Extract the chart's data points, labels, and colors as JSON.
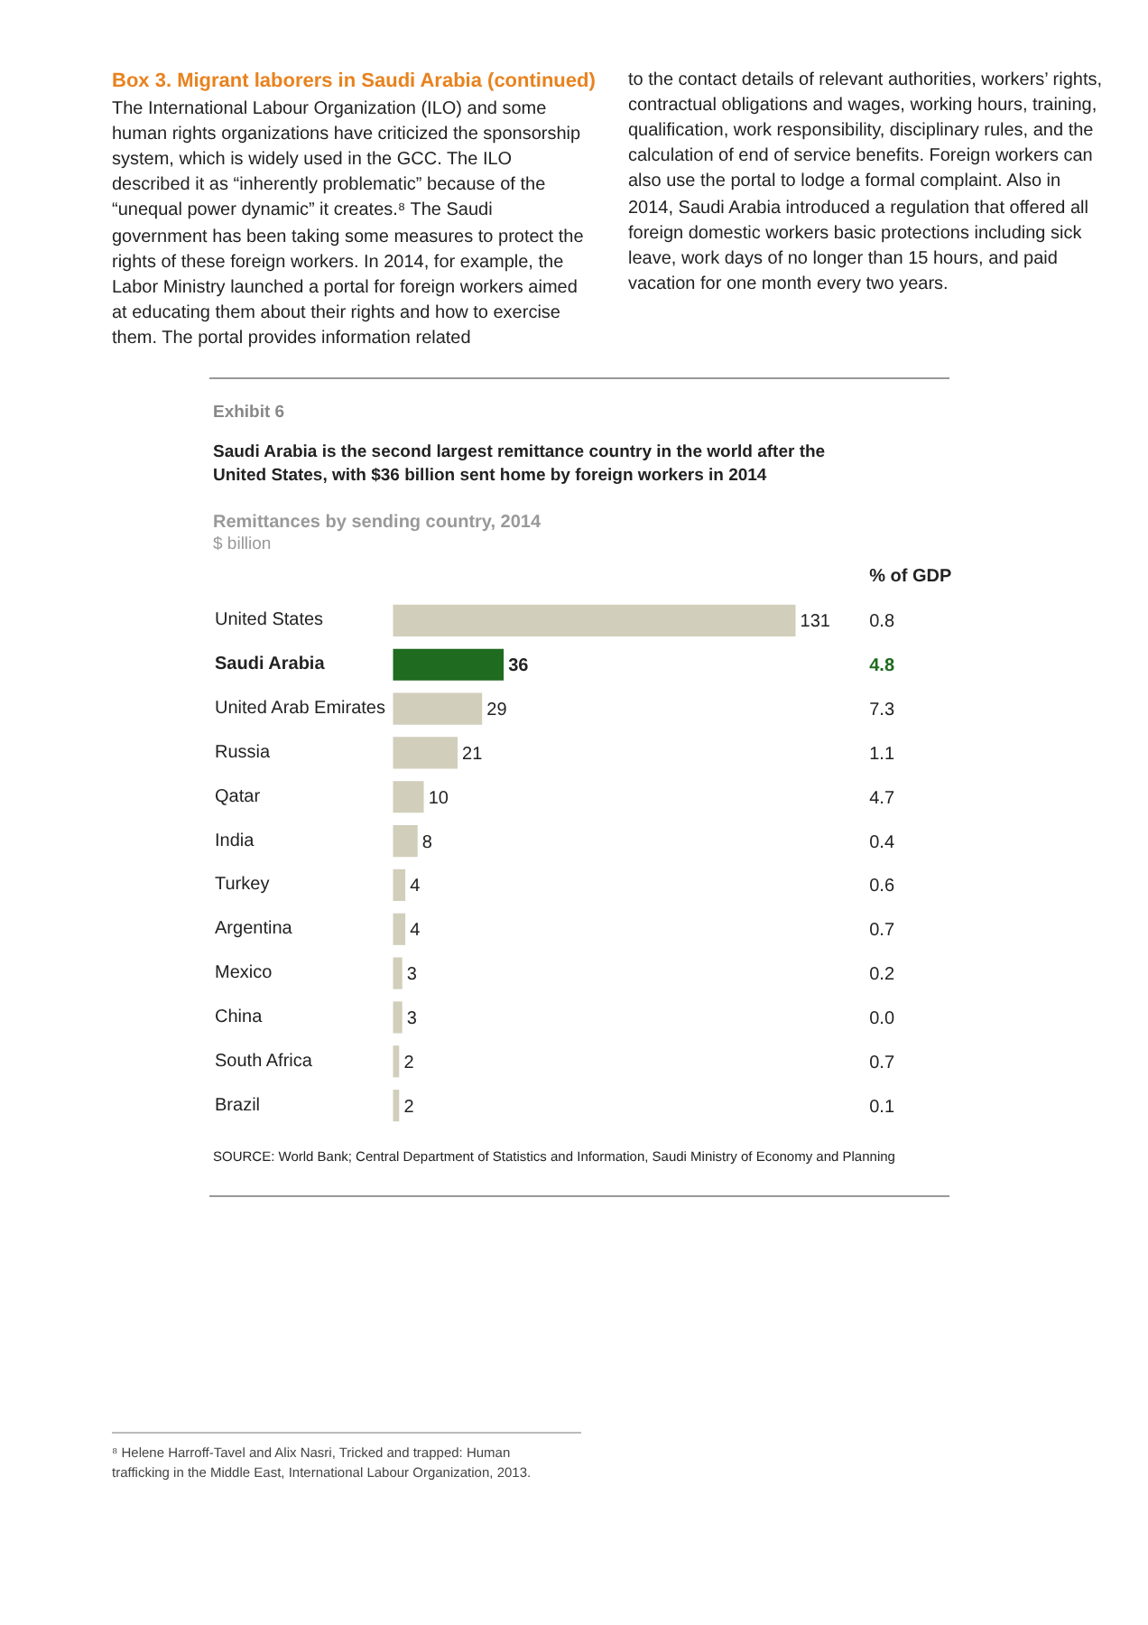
{
  "chart_data": {
    "type": "bar",
    "orientation": "horizontal",
    "title": "Saudi Arabia is the second largest remittance country in the world after the United States, with $36 billion sent home by foreign workers in 2014",
    "subtitle": "Remittances by sending country, 2014",
    "xlabel": "$ billion",
    "categories": [
      "United States",
      "Saudi Arabia",
      "United Arab Emirates",
      "Russia",
      "Qatar",
      "India",
      "Turkey",
      "Argentina",
      "Mexico",
      "China",
      "South Africa",
      "Brazil"
    ],
    "values": [
      131,
      36,
      29,
      21,
      10,
      8,
      4,
      4,
      3,
      3,
      2,
      2
    ],
    "colors": [
      "#d1cebb",
      "#1f6b1f",
      "#d1cebb",
      "#d1cebb",
      "#d1cebb",
      "#d1cebb",
      "#d1cebb",
      "#d1cebb",
      "#d1cebb",
      "#d1cebb",
      "#d1cebb",
      "#d1cebb"
    ],
    "data_labels": true,
    "annotations": [
      "Box 3. Migrant laborers in Saudi Arabia (continued)",
      "The International Labour Organization (ILO) and some human rights organizations have criticized the sponsorship system, which is widely used in the GCC. The ILO described it as “inherently problematic” because of the “unequal power dynamic” it creates.⁸ The Saudi government has been taking some measures to protect the rights of these foreign workers. In 2014, for example, the Labor Ministry launched a portal for foreign workers aimed at educating them about their rights and how to exercise them. The portal provides information related",
      "to the contact details of relevant authorities, workers’ rights, contractual obligations and wages, working hours, training, qualification, work responsibility, disciplinary rules, and the calculation of end of service benefits. Foreign workers can also use the portal to lodge a formal complaint. Also in 2014, Saudi Arabia introduced a regulation that offered all foreign domestic workers basic protections including sick leave, work days of no longer than 15 hours, and paid vacation for one month every two years.",
      "Exhibit 6",
      "% of GDP",
      "0.8",
      "4.8",
      "7.3",
      "1.1",
      "4.7",
      "0.4",
      "0.6",
      "0.7",
      "0.2",
      "0.0",
      "0.7",
      "0.1",
      "SOURCE:  World Bank; Central Department of Statistics and Information, Saudi Ministry of Economy and Planning",
      "⁸  Helene Harroff-Tavel and Alix Nasri, Tricked and trapped: Human trafficking in the Middle East, International Labour Organization, 2013."
    ]
  }
}
